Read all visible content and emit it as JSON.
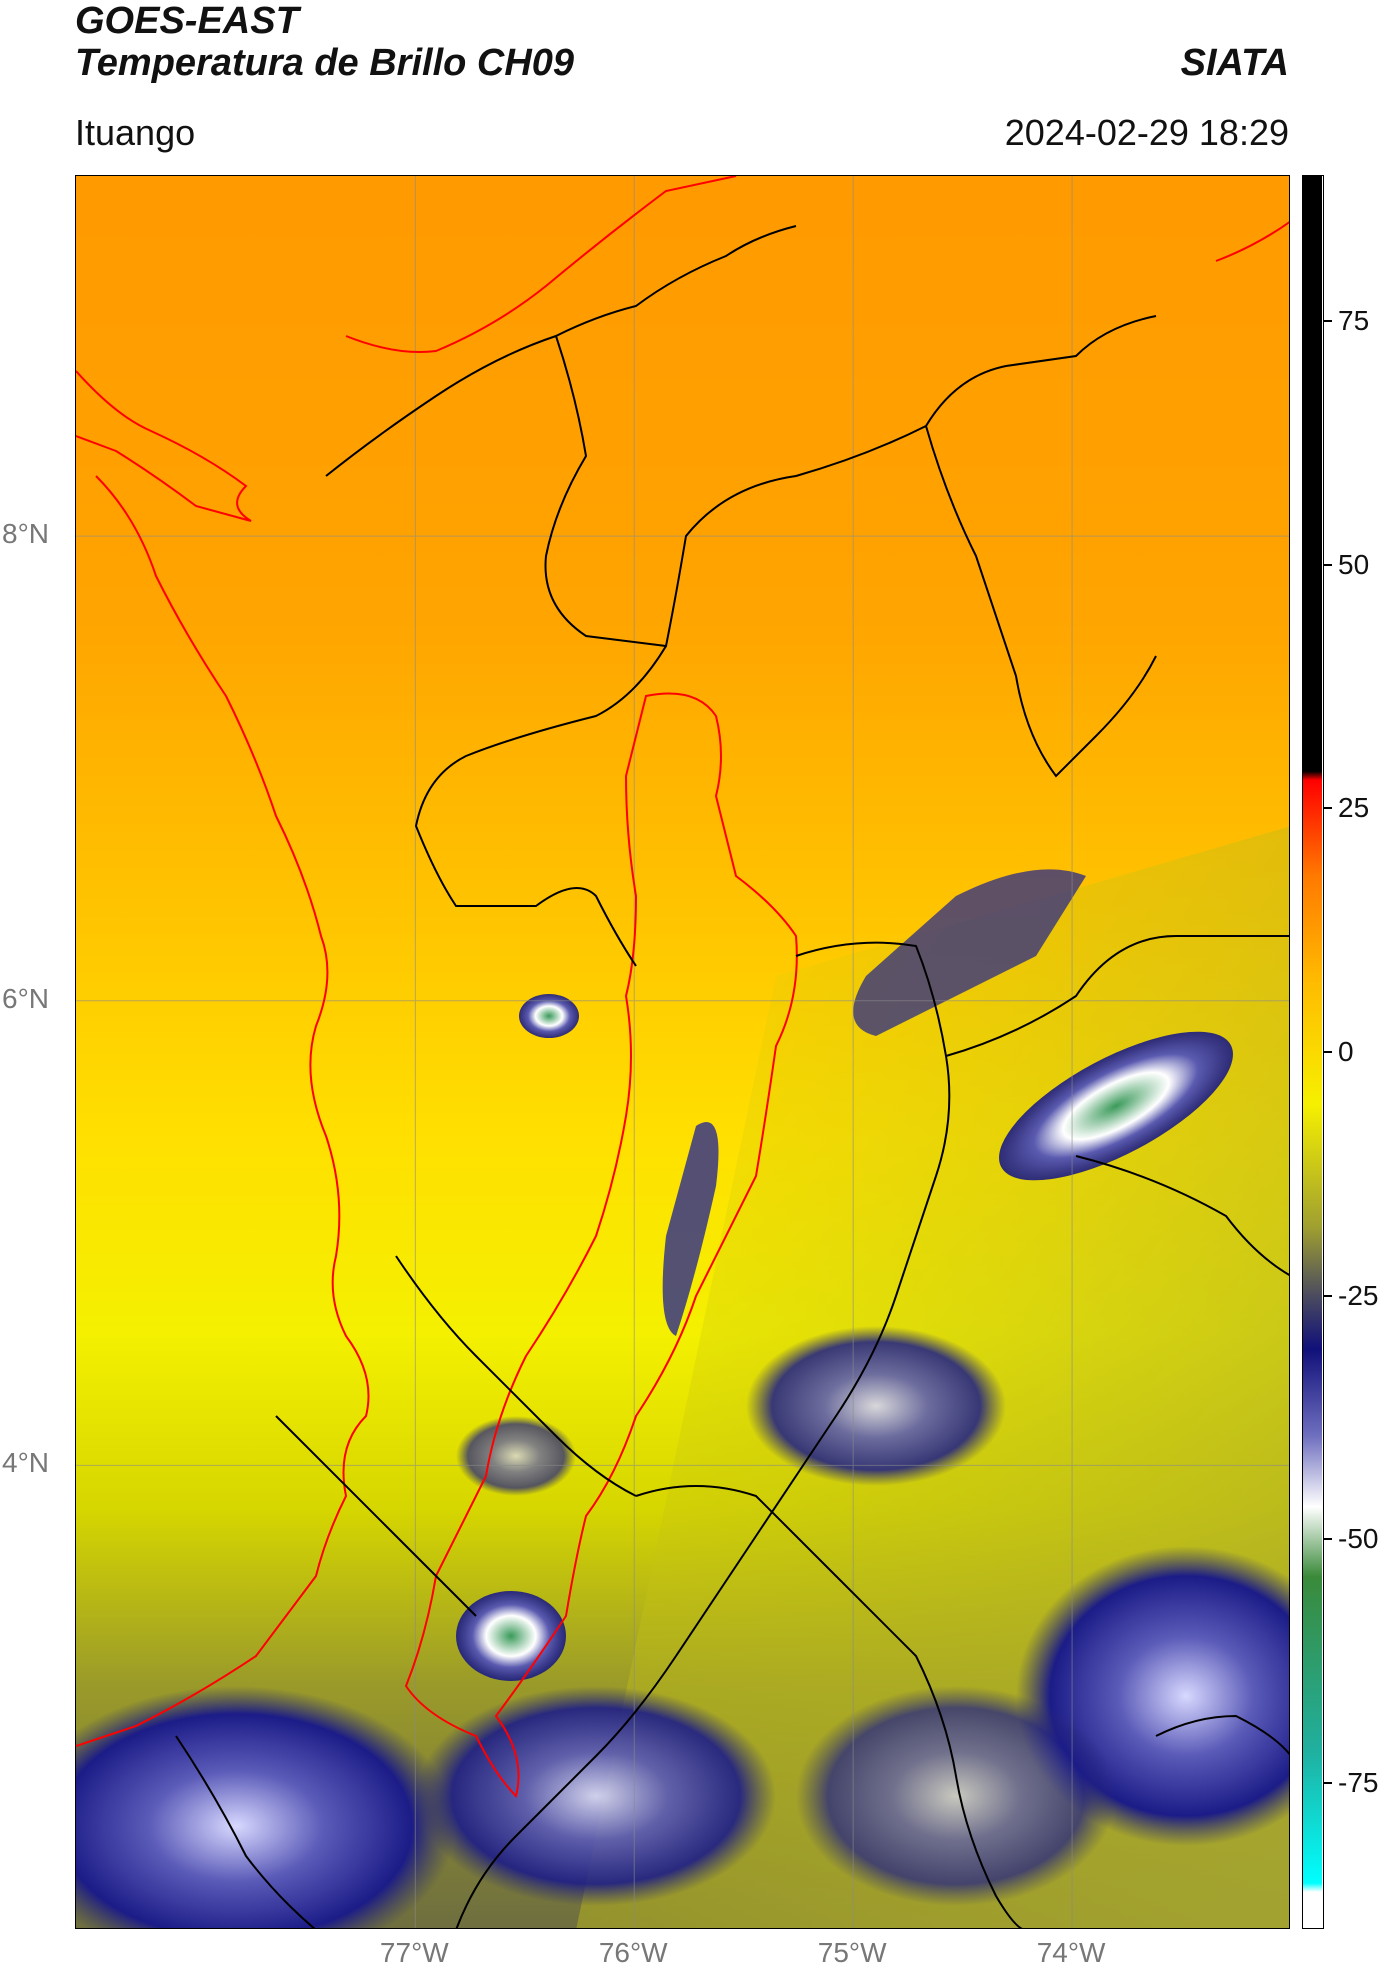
{
  "header": {
    "satellite": "GOES-EAST",
    "product": "Temperatura de Brillo CH09",
    "brand": "SIATA",
    "location": "Ituango",
    "datetime": "2024-02-29 18:29"
  },
  "map": {
    "lat_ticks": [
      {
        "value": 8,
        "label": "8°N"
      },
      {
        "value": 6,
        "label": "6°N"
      },
      {
        "value": 4,
        "label": "4°N"
      }
    ],
    "lon_ticks": [
      {
        "value": -77,
        "label": "77°W"
      },
      {
        "value": -76,
        "label": "76°W"
      },
      {
        "value": -75,
        "label": "75°W"
      },
      {
        "value": -74,
        "label": "74°W"
      }
    ],
    "extent": {
      "lon_min": -78.55,
      "lon_max": -73.0,
      "lat_min": 2.0,
      "lat_max": 9.55
    },
    "colors": {
      "coast_border": "#ff0000",
      "admin_border": "#000000"
    }
  },
  "colorbar": {
    "ticks": [
      {
        "value": 75,
        "label": "75"
      },
      {
        "value": 50,
        "label": "50"
      },
      {
        "value": 25,
        "label": "25"
      },
      {
        "value": 0,
        "label": "0"
      },
      {
        "value": -25,
        "label": "-25"
      },
      {
        "value": -50,
        "label": "-50"
      },
      {
        "value": -75,
        "label": "-75"
      }
    ],
    "range": [
      -90,
      90
    ]
  }
}
